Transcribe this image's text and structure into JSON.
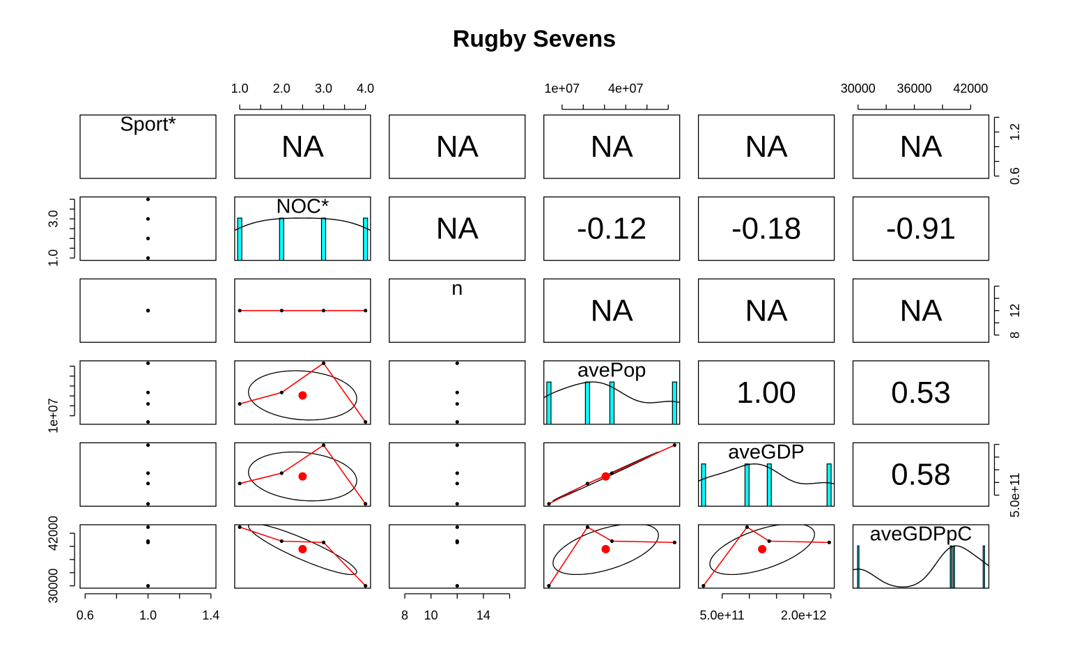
{
  "chart_data": {
    "type": "pairs",
    "title": "Rugby Sevens",
    "hist_color": "#00ffff",
    "smooth_color": "#ff0000",
    "point_color": "#000000",
    "ellipses": true,
    "variables": [
      {
        "name": "Sport*",
        "values": [
          1,
          1,
          1,
          1
        ],
        "lim": [
          0.568,
          1.432
        ],
        "ticks": [
          0.6,
          0.8,
          {
            "value": 1,
            "label": "1.0"
          },
          1.2,
          1.4
        ],
        "x_tick_labels": [
          0.6,
          {
            "value": 1,
            "label": "1.0"
          },
          1.4
        ],
        "y_tick_labels": [
          0.6,
          1.2
        ]
      },
      {
        "name": "NOC*",
        "values": [
          1,
          2,
          3,
          4
        ],
        "lim": [
          0.88,
          4.12
        ],
        "ticks": [
          1,
          1.5,
          2,
          2.5,
          3,
          3.5,
          4
        ],
        "x_tick_labels": [
          {
            "value": 1,
            "label": "1.0"
          },
          {
            "value": 2,
            "label": "2.0"
          },
          {
            "value": 3,
            "label": "3.0"
          },
          {
            "value": 4,
            "label": "4.0"
          }
        ],
        "y_tick_labels": [
          {
            "value": 1,
            "label": "1.0"
          },
          {
            "value": 3,
            "label": "3.0"
          }
        ],
        "hist": {
          "bins": [
            0.95,
            1.05,
            1.95,
            2.05,
            2.95,
            3.05,
            3.95,
            4.05
          ],
          "counts": [
            1,
            0,
            1,
            0,
            1,
            0,
            1
          ]
        }
      },
      {
        "name": "n",
        "values": [
          12,
          12,
          12,
          12
        ],
        "lim": [
          6.816,
          17.184
        ],
        "ticks": [
          8,
          10,
          12,
          14,
          16
        ],
        "x_tick_labels": [
          8,
          10,
          14
        ],
        "y_tick_labels": [
          8,
          12
        ]
      },
      {
        "name": "avePop",
        "values": [
          22000000,
          33500000,
          63000000,
          3800000
        ],
        "lim": [
          1430000,
          65400000
        ],
        "ticks": [
          10000000,
          20000000,
          30000000,
          40000000,
          50000000,
          60000000
        ],
        "x_tick_labels": [
          {
            "value": 10000000,
            "label": "1e+07"
          },
          {
            "value": 40000000,
            "label": "4e+07"
          }
        ],
        "y_tick_labels": [
          {
            "value": 10000000,
            "label": "1e+07"
          }
        ],
        "hist": {
          "bins": [
            2800000,
            4800000,
            21000000,
            23000000,
            32500000,
            34500000,
            62000000,
            64000000
          ],
          "counts": [
            1,
            0,
            1,
            0,
            1,
            0,
            1
          ]
        }
      },
      {
        "name": "aveGDP",
        "values": [
          958000000000,
          1365000000000,
          2470000000000,
          156000000000
        ],
        "lim": [
          63400000000,
          2563000000000
        ],
        "ticks": [
          500000000000,
          1000000000000,
          1500000000000,
          2000000000000,
          2500000000000
        ],
        "x_tick_labels": [
          {
            "value": 500000000000,
            "label": "5.0e+11"
          },
          {
            "value": 2000000000000,
            "label": "2.0e+12"
          }
        ],
        "y_tick_labels": [
          {
            "value": 500000000000,
            "label": "5.0e+11"
          }
        ],
        "hist": {
          "bins": [
            120000000000,
            195000000000,
            920000000000,
            995000000000,
            1330000000000,
            1405000000000,
            2430000000000,
            2505000000000
          ],
          "counts": [
            1,
            0,
            1,
            0,
            1,
            0,
            1
          ]
        }
      },
      {
        "name": "aveGDPpC",
        "values": [
          43400,
          40200,
          39900,
          30000
        ],
        "lim": [
          29464,
          43936
        ],
        "ticks": [
          30000,
          33000,
          36000,
          39000,
          42000
        ],
        "x_tick_labels": [
          30000,
          36000,
          42000
        ],
        "y_tick_labels": [
          30000,
          42000
        ],
        "hist": {
          "bins": [
            29950,
            30100,
            39830,
            39980,
            40130,
            40280,
            43330,
            43480
          ],
          "counts": [
            1,
            0,
            1,
            0,
            1,
            0,
            1
          ]
        }
      }
    ],
    "correlations": [
      [
        {
          "value": null,
          "label": "NA"
        },
        {
          "value": null,
          "label": "NA"
        },
        {
          "value": null,
          "label": "NA"
        },
        {
          "value": null,
          "label": "NA"
        },
        {
          "value": null,
          "label": "NA"
        }
      ],
      [
        {
          "value": null,
          "label": "NA"
        },
        {
          "value": -0.12,
          "label": "-0.12"
        },
        {
          "value": -0.18,
          "label": "-0.18"
        },
        {
          "value": -0.91,
          "label": "-0.91"
        }
      ],
      [
        {
          "value": null,
          "label": "NA"
        },
        {
          "value": null,
          "label": "NA"
        },
        {
          "value": null,
          "label": "NA"
        }
      ],
      [
        {
          "value": 1,
          "label": "1.00"
        },
        {
          "value": 0.53,
          "label": "0.53"
        }
      ],
      [
        {
          "value": 0.58,
          "label": "0.58"
        }
      ]
    ]
  }
}
